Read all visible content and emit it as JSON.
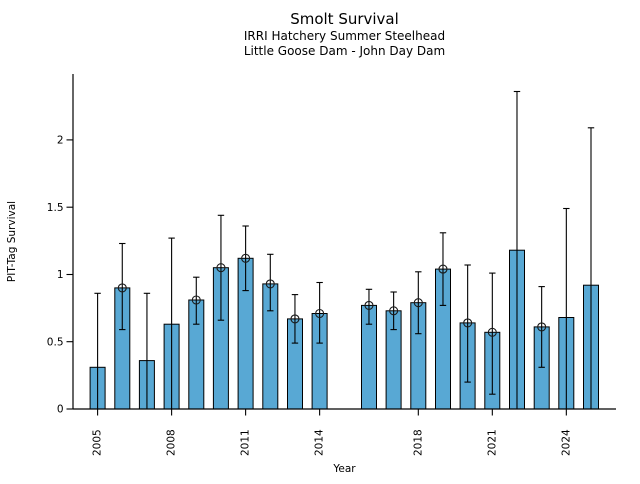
{
  "figure": {
    "title": "Smolt Survival",
    "subtitle1": "IRRI Hatchery Summer Steelhead",
    "subtitle2": "Little Goose Dam - John Day Dam"
  },
  "chart_data": {
    "type": "bar",
    "title": "Smolt Survival",
    "subtitle": [
      "IRRI Hatchery Summer Steelhead",
      "Little Goose Dam - John Day Dam"
    ],
    "xlabel": "Year",
    "ylabel": "PIT-Tag Survival",
    "ylim": [
      0,
      2.49
    ],
    "yticks": [
      0,
      0.5,
      1,
      1.5,
      2
    ],
    "ytick_labels": [
      "0",
      "0.5",
      "1",
      "1.5",
      "2"
    ],
    "xtick_years": [
      2005,
      2008,
      2011,
      2014,
      2018,
      2021,
      2024
    ],
    "x_range_years": [
      2005,
      2025
    ],
    "missing_years": [
      2015
    ],
    "grid": false,
    "legend": null,
    "bar_fill": "#58A8D4",
    "bar_edge": "#000000",
    "errorbar_color": "#000000",
    "marker_style": "open-circle",
    "series": [
      {
        "year": 2005,
        "value": 0.31,
        "ci_low": 0.0,
        "ci_high": 0.86,
        "marker": false
      },
      {
        "year": 2006,
        "value": 0.9,
        "ci_low": 0.59,
        "ci_high": 1.23,
        "marker": true
      },
      {
        "year": 2007,
        "value": 0.36,
        "ci_low": 0.0,
        "ci_high": 0.86,
        "marker": false
      },
      {
        "year": 2008,
        "value": 0.63,
        "ci_low": 0.0,
        "ci_high": 1.27,
        "marker": false
      },
      {
        "year": 2009,
        "value": 0.81,
        "ci_low": 0.63,
        "ci_high": 0.98,
        "marker": true
      },
      {
        "year": 2010,
        "value": 1.05,
        "ci_low": 0.66,
        "ci_high": 1.44,
        "marker": true
      },
      {
        "year": 2011,
        "value": 1.12,
        "ci_low": 0.88,
        "ci_high": 1.36,
        "marker": true
      },
      {
        "year": 2012,
        "value": 0.93,
        "ci_low": 0.73,
        "ci_high": 1.15,
        "marker": true
      },
      {
        "year": 2013,
        "value": 0.67,
        "ci_low": 0.49,
        "ci_high": 0.85,
        "marker": true
      },
      {
        "year": 2014,
        "value": 0.71,
        "ci_low": 0.49,
        "ci_high": 0.94,
        "marker": true
      },
      {
        "year": 2016,
        "value": 0.77,
        "ci_low": 0.63,
        "ci_high": 0.89,
        "marker": true
      },
      {
        "year": 2017,
        "value": 0.73,
        "ci_low": 0.59,
        "ci_high": 0.87,
        "marker": true
      },
      {
        "year": 2018,
        "value": 0.79,
        "ci_low": 0.56,
        "ci_high": 1.02,
        "marker": true
      },
      {
        "year": 2019,
        "value": 1.04,
        "ci_low": 0.77,
        "ci_high": 1.31,
        "marker": true
      },
      {
        "year": 2020,
        "value": 0.64,
        "ci_low": 0.2,
        "ci_high": 1.07,
        "marker": true
      },
      {
        "year": 2021,
        "value": 0.57,
        "ci_low": 0.11,
        "ci_high": 1.01,
        "marker": true
      },
      {
        "year": 2022,
        "value": 1.18,
        "ci_low": 0.0,
        "ci_high": 2.36,
        "marker": false
      },
      {
        "year": 2023,
        "value": 0.61,
        "ci_low": 0.31,
        "ci_high": 0.91,
        "marker": true
      },
      {
        "year": 2024,
        "value": 0.68,
        "ci_low": 0.0,
        "ci_high": 1.49,
        "marker": false
      },
      {
        "year": 2025,
        "value": 0.92,
        "ci_low": 0.0,
        "ci_high": 2.09,
        "marker": false
      }
    ]
  }
}
